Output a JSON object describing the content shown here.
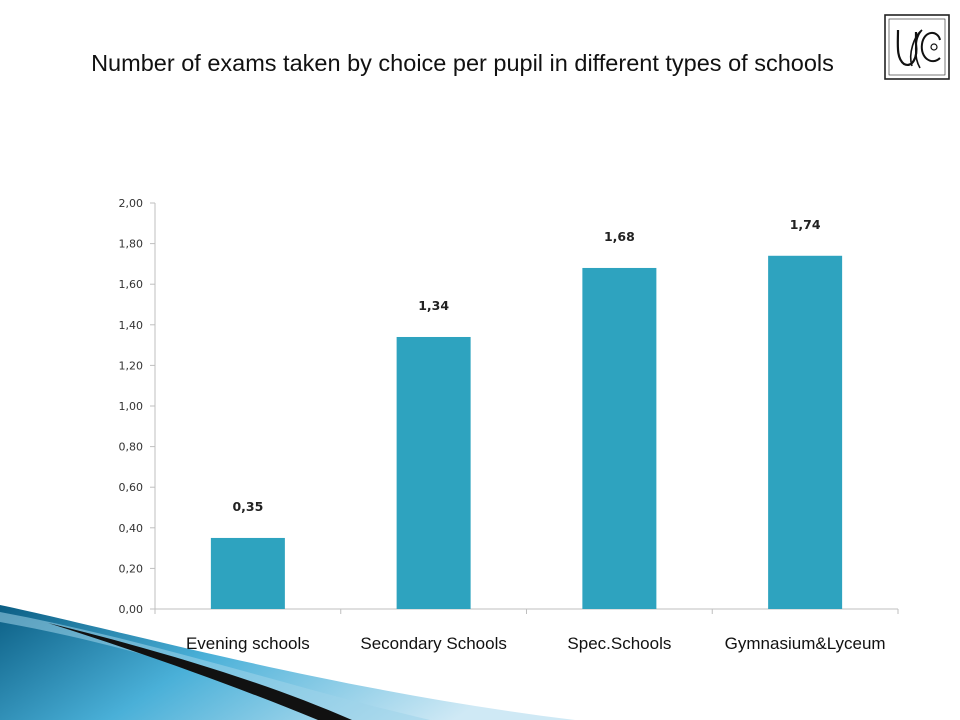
{
  "title": "Number of exams taken by choice per pupil in different types of schools",
  "logo_text": "UC",
  "chart_data": {
    "type": "bar",
    "title": "Number of exams taken by choice per pupil in different types of schools",
    "categories": [
      "Evening schools",
      "Secondary Schools",
      "Spec.Schools",
      "Gymnasium&Lyceum"
    ],
    "values": [
      0.35,
      1.34,
      1.68,
      1.74
    ],
    "data_labels": [
      "0,35",
      "1,34",
      "1,68",
      "1,74"
    ],
    "y_ticks": [
      "0,00",
      "0,20",
      "0,40",
      "0,60",
      "0,80",
      "1,00",
      "1,20",
      "1,40",
      "1,60",
      "1,80",
      "2,00"
    ],
    "ylim": [
      0,
      2
    ],
    "xlabel": "",
    "ylabel": "",
    "grid": false,
    "bar_color": "#2ea3bf"
  },
  "colors": {
    "bar": "#2ea3bf",
    "axis": "#bfbfbf",
    "swoosh_dark": "#0b5e84",
    "swoosh_light": "#5ab7dc",
    "black_arrow": "#111111"
  }
}
